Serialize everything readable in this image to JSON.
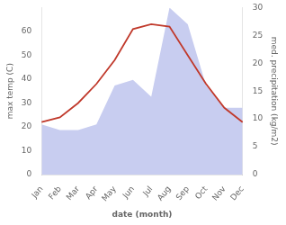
{
  "chart_data": {
    "type": "line",
    "categories": [
      "Jan",
      "Feb",
      "Mar",
      "Apr",
      "May",
      "Jun",
      "Jul",
      "Aug",
      "Sep",
      "Oct",
      "Nov",
      "Dec"
    ],
    "xlabel": "date (month)",
    "ylabel": "max temp (C)",
    "y2label": "med. precipitation (kg/m2)",
    "series": [
      {
        "type": "area",
        "color": "#c8cdf0",
        "axis": "y2",
        "values": [
          9,
          8,
          8,
          9,
          16,
          17,
          14,
          30,
          27,
          16,
          12,
          12
        ]
      },
      {
        "type": "line",
        "color": "#c0392b",
        "values": [
          22,
          24,
          30,
          38,
          48,
          61,
          63,
          62,
          50,
          38,
          28,
          22
        ]
      }
    ],
    "ylim": [
      0,
      70
    ],
    "yticks": [
      0,
      10,
      20,
      30,
      40,
      50,
      60
    ],
    "y2lim": [
      0,
      30
    ],
    "y2ticks": [
      0,
      5,
      10,
      15,
      20,
      25,
      30
    ],
    "grid": false
  }
}
